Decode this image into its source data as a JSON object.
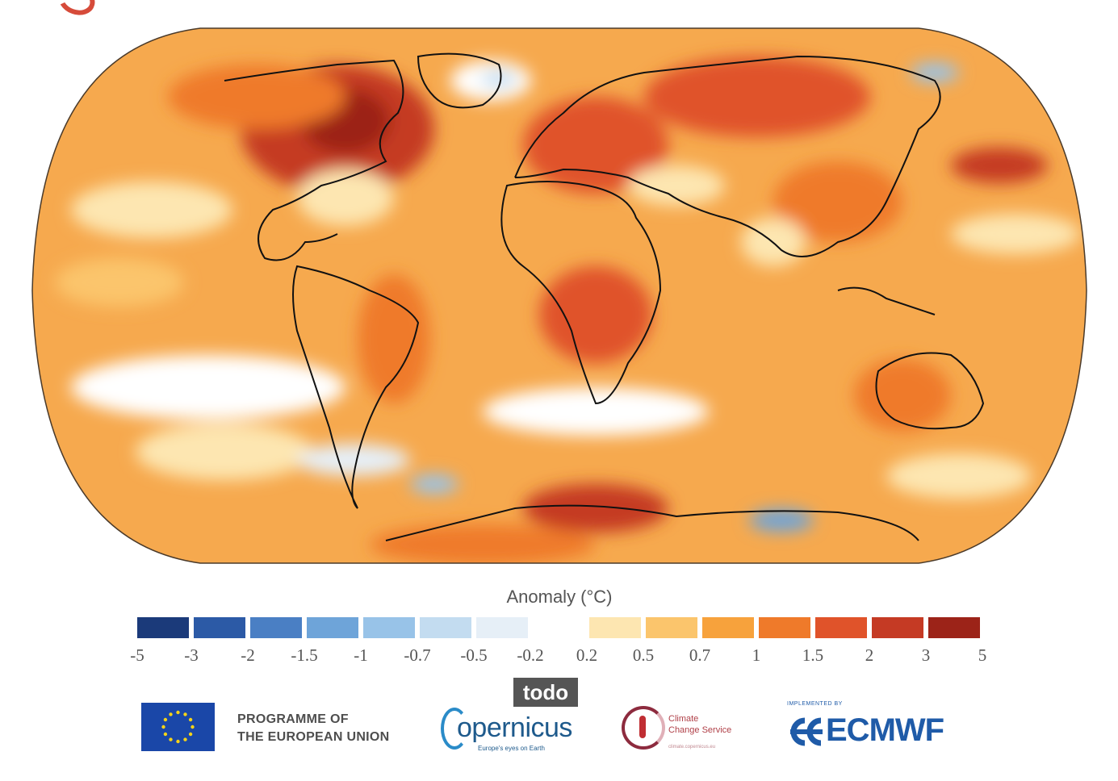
{
  "map": {
    "projection": "robinson",
    "ocean_base_color": "#f6a94e",
    "coastline_color": "#111111",
    "frame_color": "#4a3a2a"
  },
  "legend": {
    "title": "Anomaly (°C)",
    "scale": [
      {
        "low": -5,
        "high": -3,
        "color": "#1b3a7a"
      },
      {
        "low": -3,
        "high": -2,
        "color": "#2c5aa6"
      },
      {
        "low": -2,
        "high": -1.5,
        "color": "#4a7fc4"
      },
      {
        "low": -1.5,
        "high": -1,
        "color": "#6ea4d9"
      },
      {
        "low": -1,
        "high": -0.7,
        "color": "#98c3e8"
      },
      {
        "low": -0.7,
        "high": -0.5,
        "color": "#c3dcf0"
      },
      {
        "low": -0.5,
        "high": -0.2,
        "color": "#e6eff7"
      },
      {
        "low": -0.2,
        "high": 0.2,
        "color": "#ffffff"
      },
      {
        "low": 0.2,
        "high": 0.5,
        "color": "#fde6b1"
      },
      {
        "low": 0.5,
        "high": 0.7,
        "color": "#fbc56c"
      },
      {
        "low": 0.7,
        "high": 1,
        "color": "#f7a23c"
      },
      {
        "low": 1,
        "high": 1.5,
        "color": "#ef7a2a"
      },
      {
        "low": 1.5,
        "high": 2,
        "color": "#e0532a"
      },
      {
        "low": 2,
        "high": 3,
        "color": "#c53a24"
      },
      {
        "low": 3,
        "high": 5,
        "color": "#9c2318"
      }
    ],
    "ticks": [
      "-5",
      "-3",
      "-2",
      "-1.5",
      "-1",
      "-0.7",
      "-0.5",
      "-0.2",
      "0.2",
      "0.5",
      "0.7",
      "1",
      "1.5",
      "2",
      "3",
      "5"
    ]
  },
  "footer": {
    "programme_line1": "PROGRAMME OF",
    "programme_line2": "THE EUROPEAN UNION",
    "todo_badge": "todo",
    "copernicus_word": "opernicus",
    "copernicus_tagline": "Europe's eyes on Earth",
    "c3s_line1": "Climate",
    "c3s_line2": "Change Service",
    "c3s_sub": "climate.copernicus.eu",
    "ecmwf_implemented": "IMPLEMENTED BY",
    "ecmwf_word": "ECMWF",
    "eu_blue": "#1a47a8",
    "eu_gold": "#f7d417"
  }
}
